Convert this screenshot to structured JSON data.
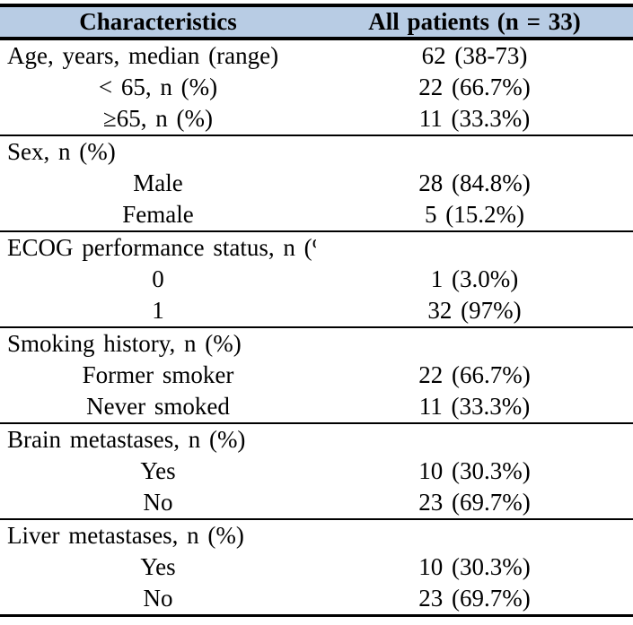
{
  "table": {
    "header": {
      "characteristics_label": "Characteristics",
      "all_patients_label": "All patients (n = 33)"
    },
    "rows": [
      {
        "label": "Age, years, median (range)",
        "value": "62 (38-73)"
      },
      {
        "label": "< 65, n (%)",
        "value": "22 (66.7%)"
      },
      {
        "label": "≥65, n (%)",
        "value": "11 (33.3%)"
      },
      {
        "label": "Sex, n (%)",
        "value": ""
      },
      {
        "label": "Male",
        "value": "28 (84.8%)"
      },
      {
        "label": "Female",
        "value": "5 (15.2%)"
      },
      {
        "label": "ECOG performance status, n (%)",
        "value": ""
      },
      {
        "label": "0",
        "value": "1 (3.0%)"
      },
      {
        "label": "1",
        "value": "32 (97%)"
      },
      {
        "label": "Smoking history, n (%)",
        "value": ""
      },
      {
        "label": "Former smoker",
        "value": "22 (66.7%)"
      },
      {
        "label": "Never smoked",
        "value": "11 (33.3%)"
      },
      {
        "label": "Brain metastases, n (%)",
        "value": ""
      },
      {
        "label": "Yes",
        "value": "10 (30.3%)"
      },
      {
        "label": "No",
        "value": "23 (69.7%)"
      },
      {
        "label": "Liver metastases, n (%)",
        "value": ""
      },
      {
        "label": "Yes",
        "value": "10 (30.3%)"
      },
      {
        "label": "No",
        "value": "23 (69.7%)"
      }
    ],
    "n_total": "33"
  },
  "colors": {
    "header_background": "#b8cce4",
    "border": "#000000",
    "text": "#000000"
  }
}
